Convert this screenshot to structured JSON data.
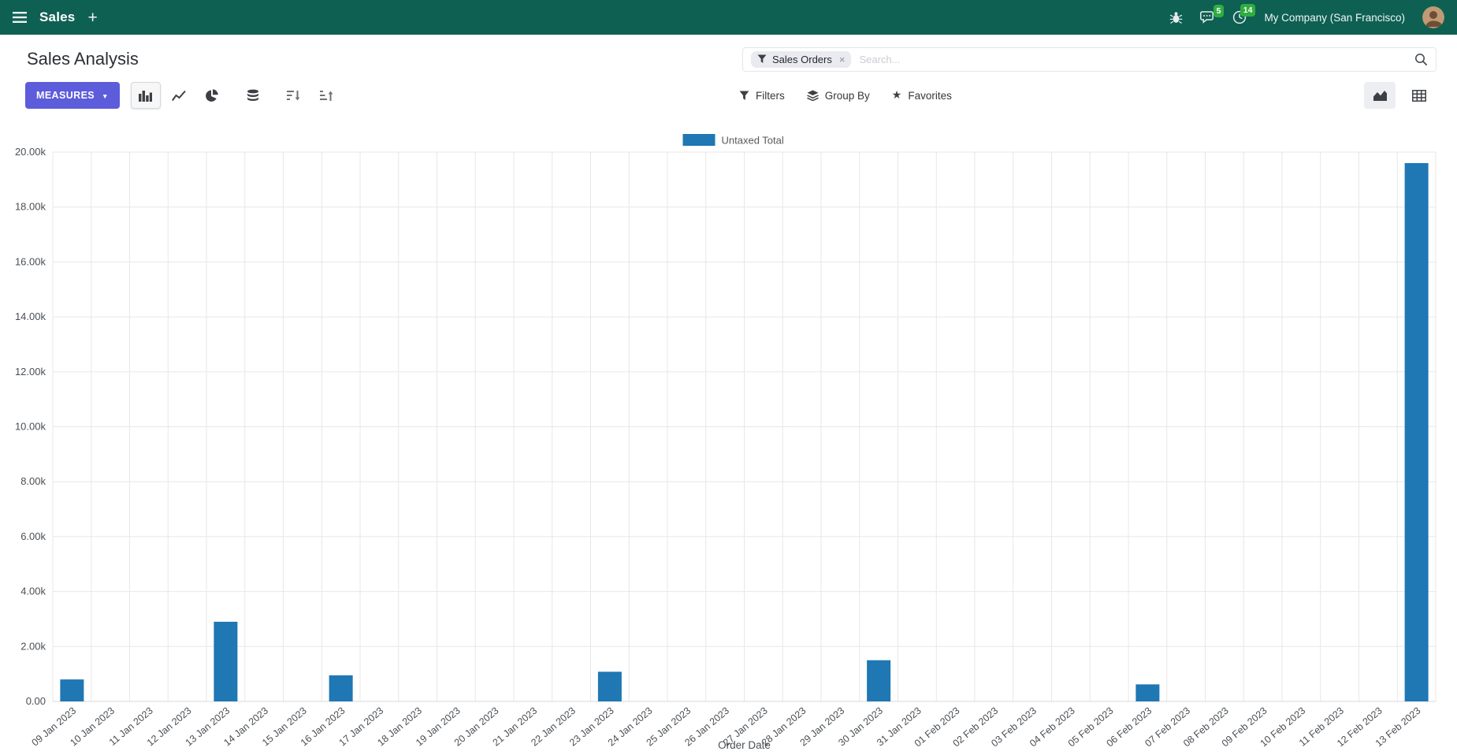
{
  "navbar": {
    "app_name": "Sales",
    "plus_label": "+",
    "messages_count": "5",
    "activities_count": "14",
    "company": "My Company (San Francisco)"
  },
  "control_panel": {
    "breadcrumb": "Sales Analysis",
    "measures_label": "MEASURES",
    "filters_label": "Filters",
    "group_by_label": "Group By",
    "favorites_label": "Favorites",
    "search": {
      "facet": "Sales Orders",
      "remove": "×",
      "placeholder": "Search..."
    }
  },
  "icons": {
    "caret_down": "▼",
    "star": "★",
    "hamburger": "svg-shape",
    "bug": "svg-shape",
    "chat_bubble": "svg-shape",
    "clock": "svg-shape",
    "filter_funnel": "svg-shape",
    "bar_chart": "svg-shape",
    "line_chart": "svg-shape",
    "pie_chart": "svg-shape",
    "stacked_database": "svg-shape",
    "sort_desc": "svg-shape",
    "sort_asc": "svg-shape",
    "group_layers": "svg-shape",
    "area_chart_view": "svg-shape",
    "pivot_grid_view": "svg-shape",
    "magnifier": "svg-shape"
  },
  "colors": {
    "navbar_bg": "#0e6053",
    "primary_button": "#5d5cdb",
    "badge_green": "#2fae3f",
    "bar_blue": "#1f77b4"
  },
  "chart_data": {
    "type": "bar",
    "title": "",
    "xlabel": "Order Date",
    "ylabel": "",
    "ylim": [
      0,
      20000
    ],
    "grid": true,
    "legend_position": "top",
    "y_ticks": [
      "0.00",
      "2.00k",
      "4.00k",
      "6.00k",
      "8.00k",
      "10.00k",
      "12.00k",
      "14.00k",
      "16.00k",
      "18.00k",
      "20.00k"
    ],
    "categories": [
      "09 Jan 2023",
      "10 Jan 2023",
      "11 Jan 2023",
      "12 Jan 2023",
      "13 Jan 2023",
      "14 Jan 2023",
      "15 Jan 2023",
      "16 Jan 2023",
      "17 Jan 2023",
      "18 Jan 2023",
      "19 Jan 2023",
      "20 Jan 2023",
      "21 Jan 2023",
      "22 Jan 2023",
      "23 Jan 2023",
      "24 Jan 2023",
      "25 Jan 2023",
      "26 Jan 2023",
      "27 Jan 2023",
      "28 Jan 2023",
      "29 Jan 2023",
      "30 Jan 2023",
      "31 Jan 2023",
      "01 Feb 2023",
      "02 Feb 2023",
      "03 Feb 2023",
      "04 Feb 2023",
      "05 Feb 2023",
      "06 Feb 2023",
      "07 Feb 2023",
      "08 Feb 2023",
      "09 Feb 2023",
      "10 Feb 2023",
      "11 Feb 2023",
      "12 Feb 2023",
      "13 Feb 2023"
    ],
    "series": [
      {
        "name": "Untaxed Total",
        "color": "#1f77b4",
        "values": [
          800,
          0,
          0,
          0,
          2900,
          0,
          0,
          950,
          0,
          0,
          0,
          0,
          0,
          0,
          1080,
          0,
          0,
          0,
          0,
          0,
          0,
          1500,
          0,
          0,
          0,
          0,
          0,
          0,
          620,
          0,
          0,
          0,
          0,
          0,
          0,
          19600
        ]
      }
    ]
  }
}
